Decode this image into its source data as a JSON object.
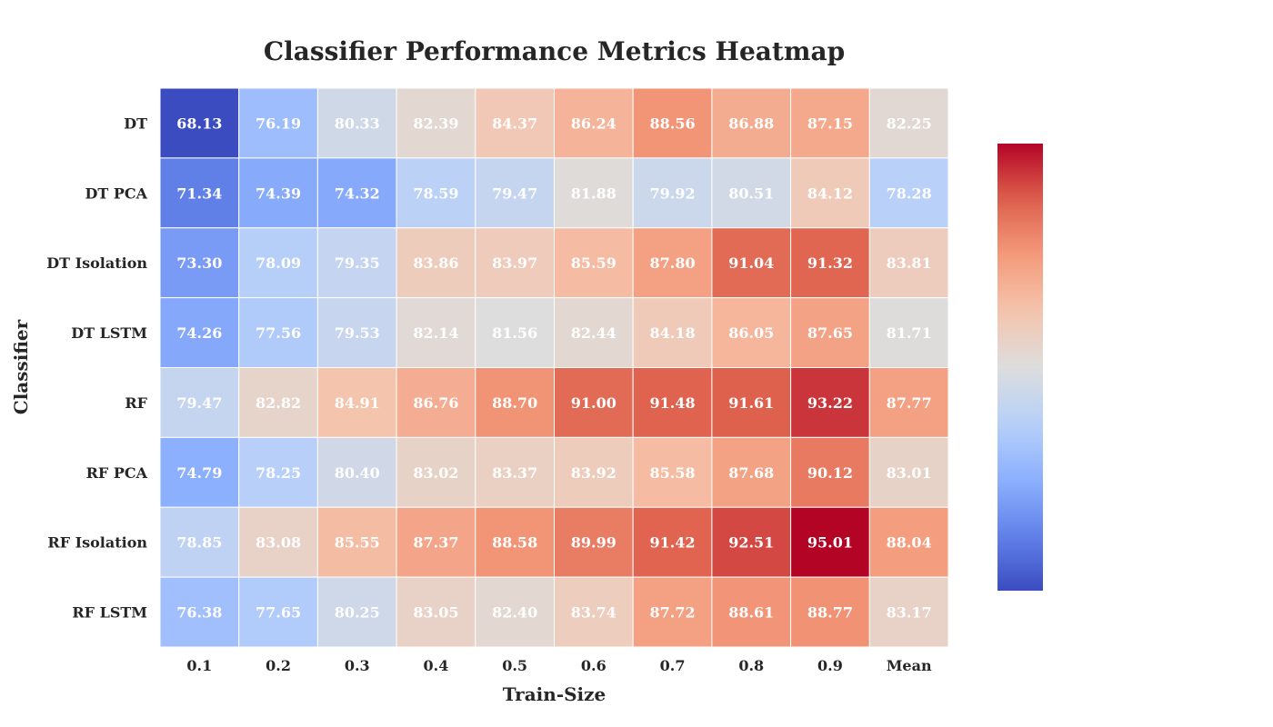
{
  "chart_data": {
    "type": "heatmap",
    "title": "Classifier Performance Metrics Heatmap",
    "xlabel": "Train-Size",
    "ylabel": "Classifier",
    "x_categories": [
      "0.1",
      "0.2",
      "0.3",
      "0.4",
      "0.5",
      "0.6",
      "0.7",
      "0.8",
      "0.9",
      "Mean"
    ],
    "y_categories": [
      "DT",
      "DT PCA",
      "DT Isolation",
      "DT LSTM",
      "RF",
      "RF PCA",
      "RF Isolation",
      "RF LSTM"
    ],
    "values": [
      [
        68.13,
        76.19,
        80.33,
        82.39,
        84.37,
        86.24,
        88.56,
        86.88,
        87.15,
        82.25
      ],
      [
        71.34,
        74.39,
        74.32,
        78.59,
        79.47,
        81.88,
        79.92,
        80.51,
        84.12,
        78.28
      ],
      [
        73.3,
        78.09,
        79.35,
        83.86,
        83.97,
        85.59,
        87.8,
        91.04,
        91.32,
        83.81
      ],
      [
        74.26,
        77.56,
        79.53,
        82.14,
        81.56,
        82.44,
        84.18,
        86.05,
        87.65,
        81.71
      ],
      [
        79.47,
        82.82,
        84.91,
        86.76,
        88.7,
        91.0,
        91.48,
        91.61,
        93.22,
        87.77
      ],
      [
        74.79,
        78.25,
        80.4,
        83.02,
        83.37,
        83.92,
        85.58,
        87.68,
        90.12,
        83.01
      ],
      [
        78.85,
        83.08,
        85.55,
        87.37,
        88.58,
        89.99,
        91.42,
        92.51,
        95.01,
        88.04
      ],
      [
        76.38,
        77.65,
        80.25,
        83.05,
        82.4,
        83.74,
        87.72,
        88.61,
        88.77,
        83.17
      ]
    ],
    "value_format": "2 decimals",
    "colormap": "coolwarm",
    "value_range": [
      68.13,
      95.01
    ],
    "colorbar": "right, no tick labels",
    "grid": false,
    "cell_border_color": "#ffffff",
    "annotation_color": "#ffffff"
  }
}
